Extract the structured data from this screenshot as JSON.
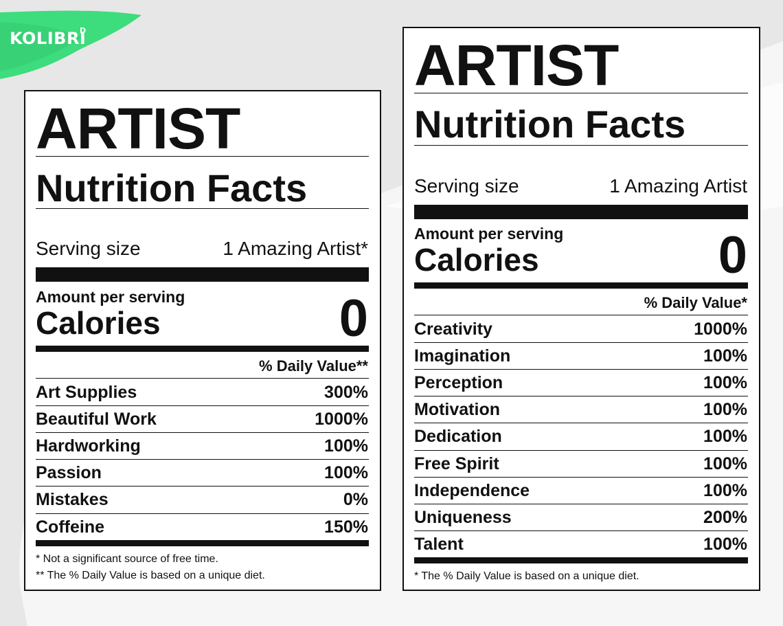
{
  "brand": {
    "name": "KOLIBRI",
    "sup": "D"
  },
  "left": {
    "title": "ARTIST",
    "subtitle": "Nutrition Facts",
    "serving_label": "Serving size",
    "serving_value": "1 Amazing Artist*",
    "amount_label": "Amount per serving",
    "calories_label": "Calories",
    "calories_value": "0",
    "dv_header": "% Daily Value**",
    "rows": [
      {
        "name": "Art Supplies",
        "value": "300%"
      },
      {
        "name": "Beautiful Work",
        "value": "1000%"
      },
      {
        "name": "Hardworking",
        "value": "100%"
      },
      {
        "name": "Passion",
        "value": "100%"
      },
      {
        "name": "Mistakes",
        "value": "0%"
      },
      {
        "name": "Coffeine",
        "value": "150%"
      }
    ],
    "footnotes": [
      "* Not a significant source of free time.",
      "** The % Daily Value is based on a unique diet."
    ]
  },
  "right": {
    "title": "ARTIST",
    "subtitle": "Nutrition Facts",
    "serving_label": "Serving size",
    "serving_value": "1 Amazing Artist",
    "amount_label": "Amount per serving",
    "calories_label": "Calories",
    "calories_value": "0",
    "dv_header": "% Daily Value*",
    "rows": [
      {
        "name": "Creativity",
        "value": "1000%"
      },
      {
        "name": "Imagination",
        "value": "100%"
      },
      {
        "name": "Perception",
        "value": "100%"
      },
      {
        "name": "Motivation",
        "value": "100%"
      },
      {
        "name": "Dedication",
        "value": "100%"
      },
      {
        "name": "Free Spirit",
        "value": "100%"
      },
      {
        "name": "Independence",
        "value": "100%"
      },
      {
        "name": "Uniqueness",
        "value": "200%"
      },
      {
        "name": "Talent",
        "value": "100%"
      }
    ],
    "footnotes": [
      "* The % Daily Value is based on a unique diet."
    ]
  },
  "colors": {
    "brand_green": "#3ddc7c",
    "ink": "#111111",
    "paper": "#ffffff"
  }
}
